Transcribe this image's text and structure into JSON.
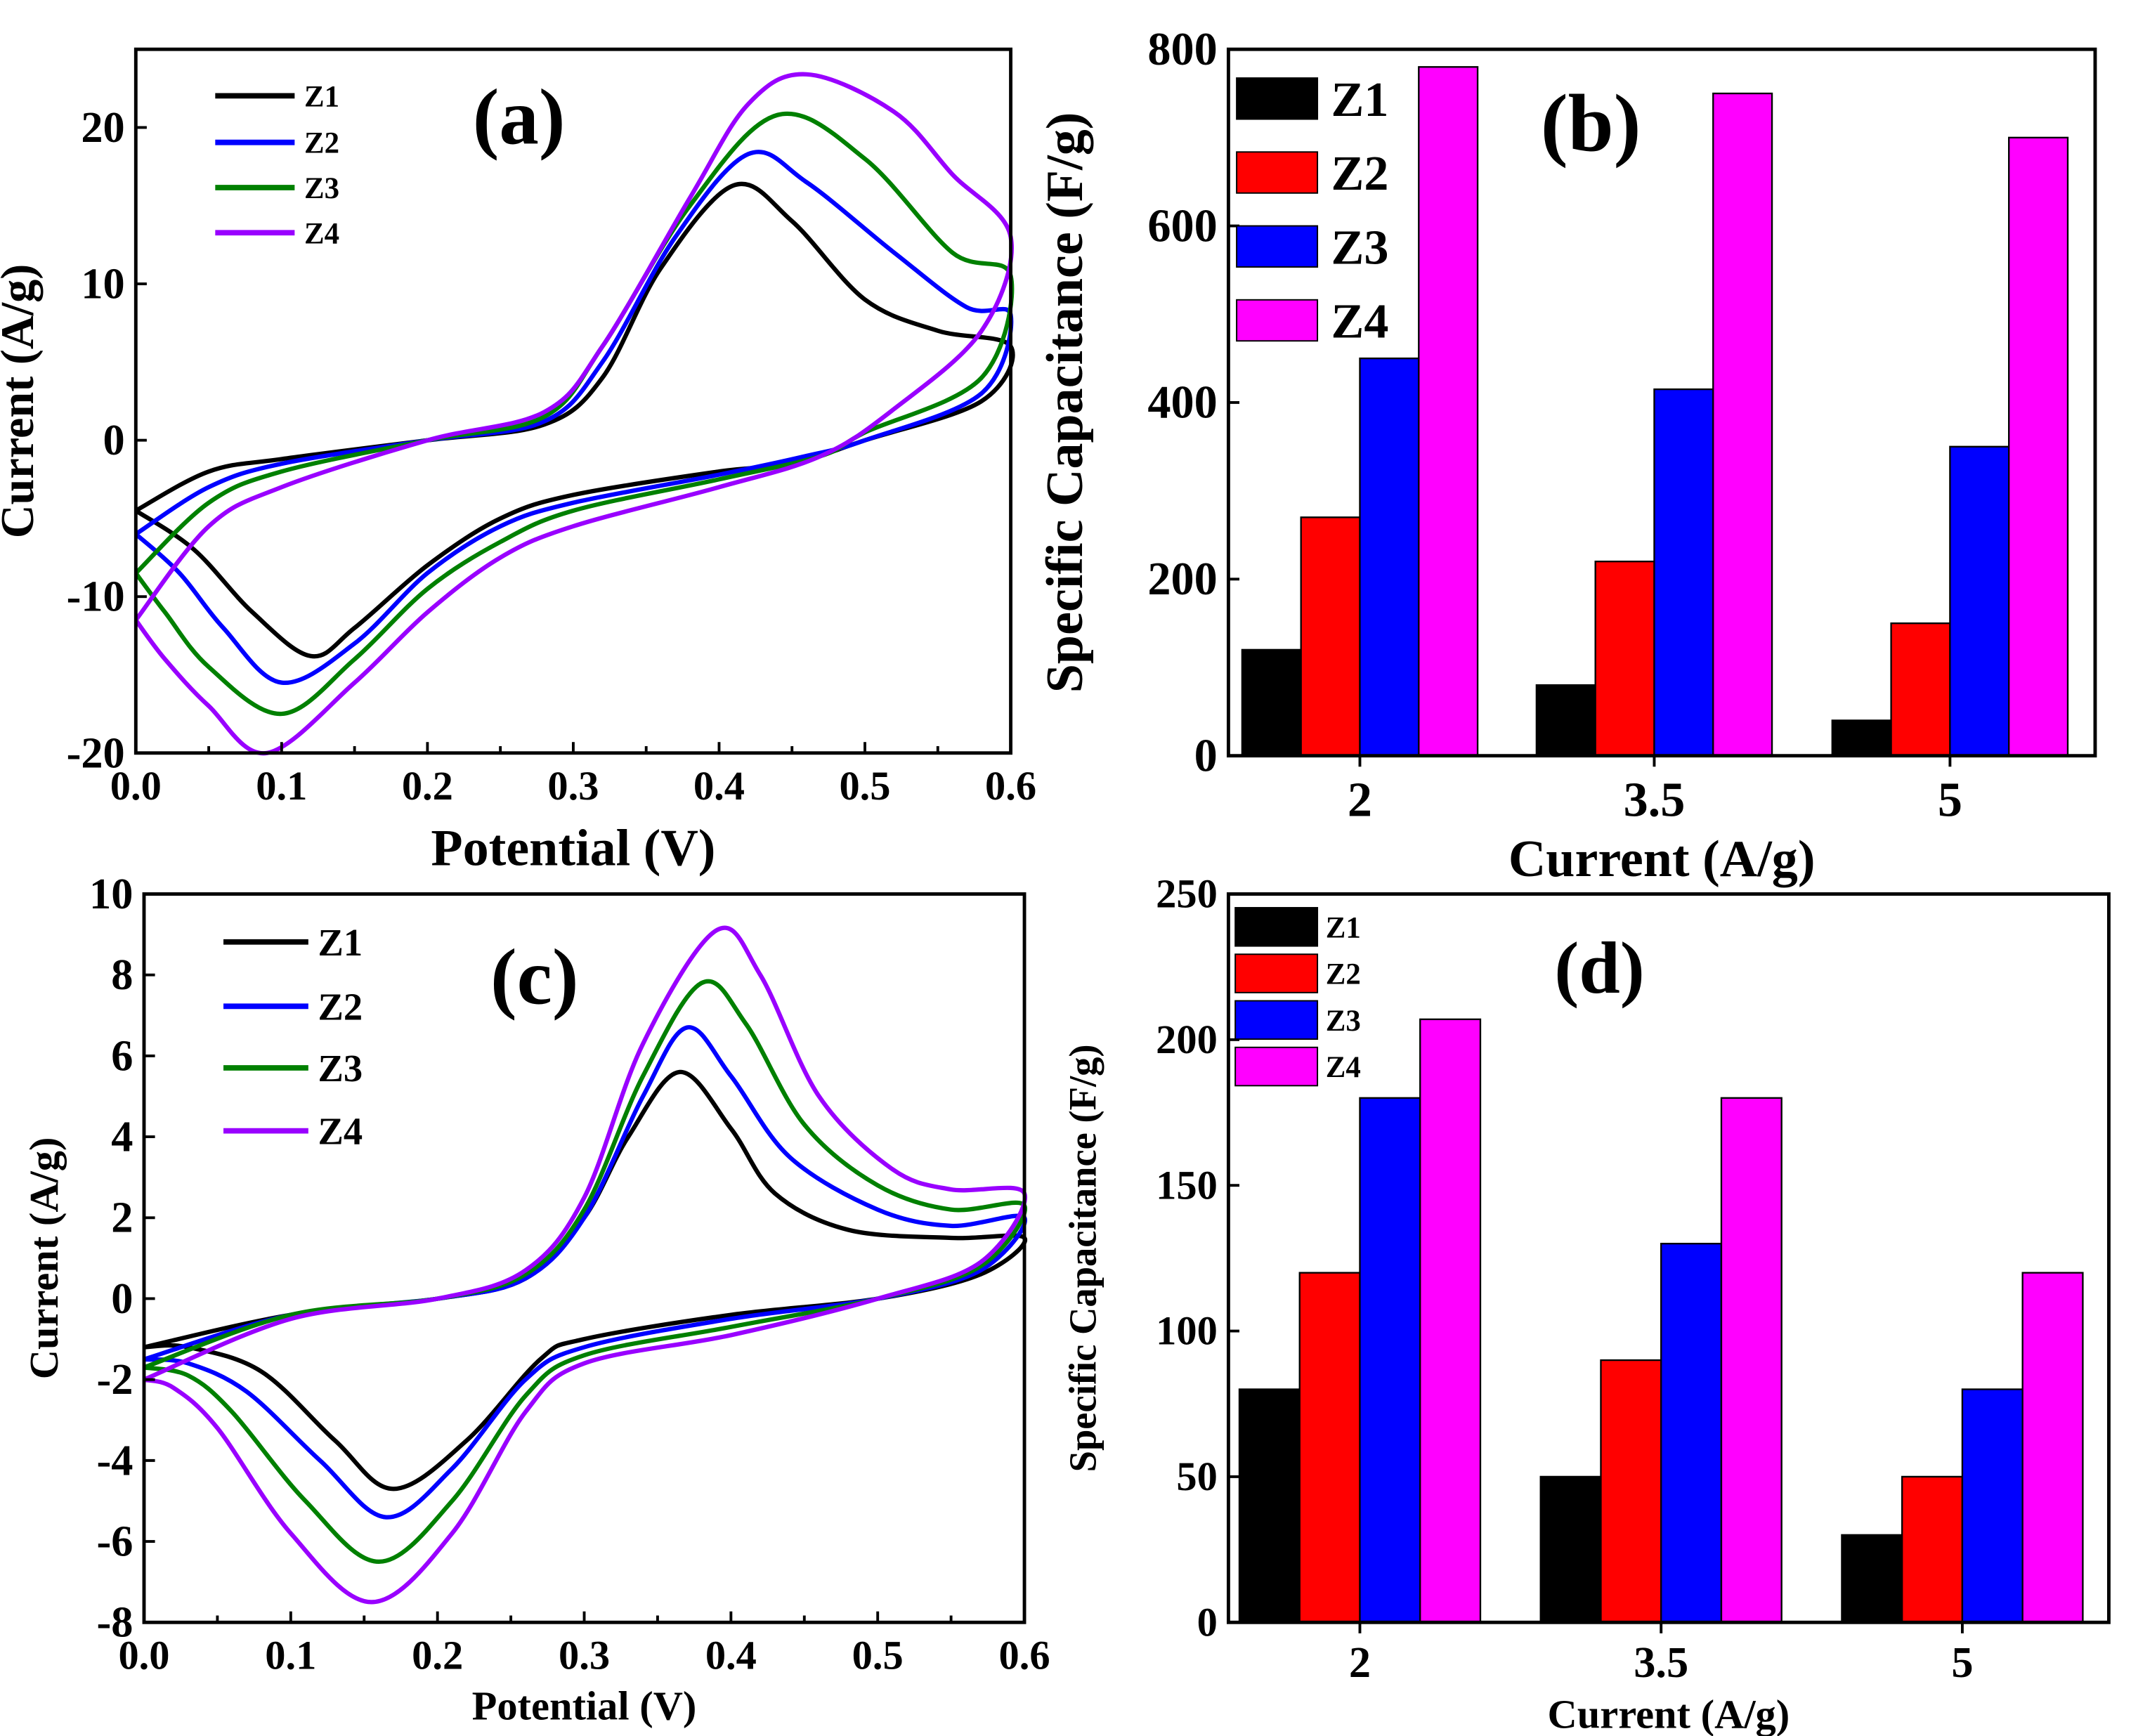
{
  "chart_data": [
    {
      "panel": "a",
      "type": "line",
      "label": "(a)",
      "xlabel": "Potential (V)",
      "ylabel": "Current (A/g)",
      "xlim": [
        0,
        0.6
      ],
      "ylim": [
        -20,
        25
      ],
      "xticks": [
        "0.0",
        "0.1",
        "0.2",
        "0.3",
        "0.4",
        "0.5",
        "0.6"
      ],
      "xtickvals": [
        0,
        0.1,
        0.2,
        0.3,
        0.4,
        0.5,
        0.6
      ],
      "yticks": [
        "-20",
        "-10",
        "0",
        "10",
        "20"
      ],
      "ytickvals": [
        -20,
        -10,
        0,
        10,
        20
      ],
      "legend": "top-left",
      "series": [
        {
          "name": "Z1",
          "color": "#000000",
          "points": [
            [
              0,
              -4.5
            ],
            [
              0.05,
              -2
            ],
            [
              0.1,
              -1.2
            ],
            [
              0.2,
              0
            ],
            [
              0.28,
              1
            ],
            [
              0.32,
              4
            ],
            [
              0.36,
              11
            ],
            [
              0.41,
              16.3
            ],
            [
              0.45,
              14
            ],
            [
              0.5,
              9
            ],
            [
              0.55,
              7
            ],
            [
              0.6,
              6
            ],
            [
              0.58,
              2.5
            ],
            [
              0.5,
              0
            ],
            [
              0.45,
              -1.5
            ],
            [
              0.4,
              -2
            ],
            [
              0.3,
              -3.5
            ],
            [
              0.25,
              -5
            ],
            [
              0.2,
              -8
            ],
            [
              0.15,
              -12
            ],
            [
              0.12,
              -13.8
            ],
            [
              0.08,
              -11
            ],
            [
              0.04,
              -7
            ],
            [
              0,
              -4.5
            ]
          ]
        },
        {
          "name": "Z2",
          "color": "#0000ff",
          "points": [
            [
              0,
              -6
            ],
            [
              0.05,
              -3
            ],
            [
              0.1,
              -1.5
            ],
            [
              0.2,
              0
            ],
            [
              0.28,
              1.2
            ],
            [
              0.32,
              5
            ],
            [
              0.37,
              13
            ],
            [
              0.42,
              18.3
            ],
            [
              0.46,
              16.5
            ],
            [
              0.52,
              12
            ],
            [
              0.57,
              8.5
            ],
            [
              0.6,
              8
            ],
            [
              0.58,
              3
            ],
            [
              0.5,
              0
            ],
            [
              0.46,
              -1
            ],
            [
              0.4,
              -2.2
            ],
            [
              0.3,
              -4
            ],
            [
              0.25,
              -5.5
            ],
            [
              0.2,
              -8.5
            ],
            [
              0.15,
              -13
            ],
            [
              0.1,
              -15.5
            ],
            [
              0.06,
              -12
            ],
            [
              0.03,
              -8.5
            ],
            [
              0,
              -6
            ]
          ]
        },
        {
          "name": "Z3",
          "color": "#008000",
          "points": [
            [
              0,
              -8.5
            ],
            [
              0.05,
              -4
            ],
            [
              0.1,
              -2
            ],
            [
              0.2,
              0
            ],
            [
              0.28,
              1.5
            ],
            [
              0.32,
              6
            ],
            [
              0.38,
              15
            ],
            [
              0.44,
              20.8
            ],
            [
              0.5,
              18
            ],
            [
              0.56,
              12
            ],
            [
              0.6,
              10.5
            ],
            [
              0.58,
              4
            ],
            [
              0.5,
              0.5
            ],
            [
              0.47,
              -1
            ],
            [
              0.4,
              -2.5
            ],
            [
              0.3,
              -4.5
            ],
            [
              0.25,
              -6.5
            ],
            [
              0.2,
              -9.5
            ],
            [
              0.15,
              -14
            ],
            [
              0.1,
              -17.5
            ],
            [
              0.05,
              -14.5
            ],
            [
              0.02,
              -11
            ],
            [
              0,
              -8.5
            ]
          ]
        },
        {
          "name": "Z4",
          "color": "#9900ff",
          "points": [
            [
              0,
              -11.5
            ],
            [
              0.05,
              -5.5
            ],
            [
              0.1,
              -3
            ],
            [
              0.2,
              0
            ],
            [
              0.28,
              1.8
            ],
            [
              0.32,
              6
            ],
            [
              0.38,
              15.5
            ],
            [
              0.42,
              21.5
            ],
            [
              0.46,
              23.4
            ],
            [
              0.52,
              21
            ],
            [
              0.56,
              17
            ],
            [
              0.6,
              13
            ],
            [
              0.58,
              7
            ],
            [
              0.52,
              2
            ],
            [
              0.47,
              -1
            ],
            [
              0.4,
              -3
            ],
            [
              0.3,
              -5.5
            ],
            [
              0.25,
              -7.5
            ],
            [
              0.2,
              -11
            ],
            [
              0.15,
              -15.5
            ],
            [
              0.09,
              -20
            ],
            [
              0.05,
              -17
            ],
            [
              0.02,
              -14
            ],
            [
              0,
              -11.5
            ]
          ]
        }
      ]
    },
    {
      "panel": "b",
      "type": "bar",
      "label": "(b)",
      "xlabel": "Current (A/g)",
      "ylabel": "Specific Capacitance (F/g)",
      "categories": [
        "2",
        "3.5",
        "5"
      ],
      "ylim": [
        0,
        800
      ],
      "yticks": [
        "0",
        "200",
        "400",
        "600",
        "800"
      ],
      "ytickvals": [
        0,
        200,
        400,
        600,
        800
      ],
      "legend": "top-left",
      "series": [
        {
          "name": "Z1",
          "color": "#000000",
          "values": [
            120,
            80,
            40
          ]
        },
        {
          "name": "Z2",
          "color": "#ff0000",
          "values": [
            270,
            220,
            150
          ]
        },
        {
          "name": "Z3",
          "color": "#0000ff",
          "values": [
            450,
            415,
            350
          ]
        },
        {
          "name": "Z4",
          "color": "#ff00ff",
          "values": [
            780,
            750,
            700
          ]
        }
      ]
    },
    {
      "panel": "c",
      "type": "line",
      "label": "(c)",
      "xlabel": "Potential (V)",
      "ylabel": "Current (A/g)",
      "xlim": [
        0,
        0.6
      ],
      "ylim": [
        -8,
        10
      ],
      "xticks": [
        "0.0",
        "0.1",
        "0.2",
        "0.3",
        "0.4",
        "0.5",
        "0.6"
      ],
      "xtickvals": [
        0,
        0.1,
        0.2,
        0.3,
        0.4,
        0.5,
        0.6
      ],
      "yticks": [
        "-8",
        "-6",
        "-4",
        "-2",
        "0",
        "2",
        "4",
        "6",
        "8",
        "10"
      ],
      "ytickvals": [
        -8,
        -6,
        -4,
        -2,
        0,
        2,
        4,
        6,
        8,
        10
      ],
      "legend": "top-left",
      "series": [
        {
          "name": "Z1",
          "color": "#000000",
          "points": [
            [
              0,
              -1.2
            ],
            [
              0.1,
              -0.4
            ],
            [
              0.2,
              0
            ],
            [
              0.26,
              0.5
            ],
            [
              0.3,
              2
            ],
            [
              0.33,
              4
            ],
            [
              0.365,
              5.6
            ],
            [
              0.4,
              4.2
            ],
            [
              0.43,
              2.6
            ],
            [
              0.48,
              1.7
            ],
            [
              0.55,
              1.5
            ],
            [
              0.6,
              1.5
            ],
            [
              0.57,
              0.6
            ],
            [
              0.5,
              0
            ],
            [
              0.4,
              -0.4
            ],
            [
              0.3,
              -1
            ],
            [
              0.27,
              -1.5
            ],
            [
              0.22,
              -3.5
            ],
            [
              0.17,
              -4.7
            ],
            [
              0.13,
              -3.5
            ],
            [
              0.08,
              -1.8
            ],
            [
              0.03,
              -1.2
            ],
            [
              0,
              -1.2
            ]
          ]
        },
        {
          "name": "Z2",
          "color": "#0000ff",
          "points": [
            [
              0,
              -1.5
            ],
            [
              0.1,
              -0.4
            ],
            [
              0.2,
              0
            ],
            [
              0.26,
              0.5
            ],
            [
              0.3,
              2
            ],
            [
              0.34,
              5
            ],
            [
              0.37,
              6.7
            ],
            [
              0.4,
              5.5
            ],
            [
              0.44,
              3.5
            ],
            [
              0.5,
              2.2
            ],
            [
              0.55,
              1.8
            ],
            [
              0.6,
              2
            ],
            [
              0.57,
              0.7
            ],
            [
              0.5,
              0
            ],
            [
              0.4,
              -0.5
            ],
            [
              0.3,
              -1.2
            ],
            [
              0.26,
              -2
            ],
            [
              0.21,
              -4.2
            ],
            [
              0.165,
              -5.4
            ],
            [
              0.12,
              -4
            ],
            [
              0.07,
              -2.3
            ],
            [
              0.03,
              -1.6
            ],
            [
              0,
              -1.5
            ]
          ]
        },
        {
          "name": "Z3",
          "color": "#008000",
          "points": [
            [
              0,
              -1.7
            ],
            [
              0.1,
              -0.4
            ],
            [
              0.2,
              0
            ],
            [
              0.26,
              0.6
            ],
            [
              0.3,
              2.2
            ],
            [
              0.34,
              5.5
            ],
            [
              0.38,
              7.8
            ],
            [
              0.41,
              6.8
            ],
            [
              0.45,
              4.3
            ],
            [
              0.5,
              2.8
            ],
            [
              0.55,
              2.2
            ],
            [
              0.6,
              2.3
            ],
            [
              0.57,
              0.8
            ],
            [
              0.5,
              0
            ],
            [
              0.4,
              -0.7
            ],
            [
              0.3,
              -1.4
            ],
            [
              0.26,
              -2.4
            ],
            [
              0.21,
              -5
            ],
            [
              0.16,
              -6.5
            ],
            [
              0.11,
              -5
            ],
            [
              0.06,
              -2.8
            ],
            [
              0.03,
              -1.9
            ],
            [
              0,
              -1.7
            ]
          ]
        },
        {
          "name": "Z4",
          "color": "#9900ff",
          "points": [
            [
              0,
              -2
            ],
            [
              0.1,
              -0.5
            ],
            [
              0.2,
              0
            ],
            [
              0.26,
              0.7
            ],
            [
              0.3,
              2.5
            ],
            [
              0.34,
              6.3
            ],
            [
              0.39,
              9.1
            ],
            [
              0.42,
              8
            ],
            [
              0.46,
              5
            ],
            [
              0.51,
              3.2
            ],
            [
              0.55,
              2.7
            ],
            [
              0.6,
              2.6
            ],
            [
              0.57,
              0.9
            ],
            [
              0.5,
              0
            ],
            [
              0.4,
              -0.9
            ],
            [
              0.3,
              -1.6
            ],
            [
              0.26,
              -2.8
            ],
            [
              0.21,
              -5.8
            ],
            [
              0.155,
              -7.5
            ],
            [
              0.1,
              -5.8
            ],
            [
              0.05,
              -3.2
            ],
            [
              0.02,
              -2.2
            ],
            [
              0,
              -2
            ]
          ]
        }
      ]
    },
    {
      "panel": "d",
      "type": "bar",
      "label": "(d)",
      "xlabel": "Current (A/g)",
      "ylabel": "Specific Capacitance (F/g)",
      "categories": [
        "2",
        "3.5",
        "5"
      ],
      "ylim": [
        0,
        250
      ],
      "yticks": [
        "0",
        "50",
        "100",
        "150",
        "200",
        "250"
      ],
      "ytickvals": [
        0,
        50,
        100,
        150,
        200,
        250
      ],
      "legend": "top-left",
      "series": [
        {
          "name": "Z1",
          "color": "#000000",
          "values": [
            80,
            50,
            30
          ]
        },
        {
          "name": "Z2",
          "color": "#ff0000",
          "values": [
            120,
            90,
            50
          ]
        },
        {
          "name": "Z3",
          "color": "#0000ff",
          "values": [
            180,
            130,
            80
          ]
        },
        {
          "name": "Z4",
          "color": "#ff00ff",
          "values": [
            207,
            180,
            120
          ]
        }
      ]
    }
  ]
}
